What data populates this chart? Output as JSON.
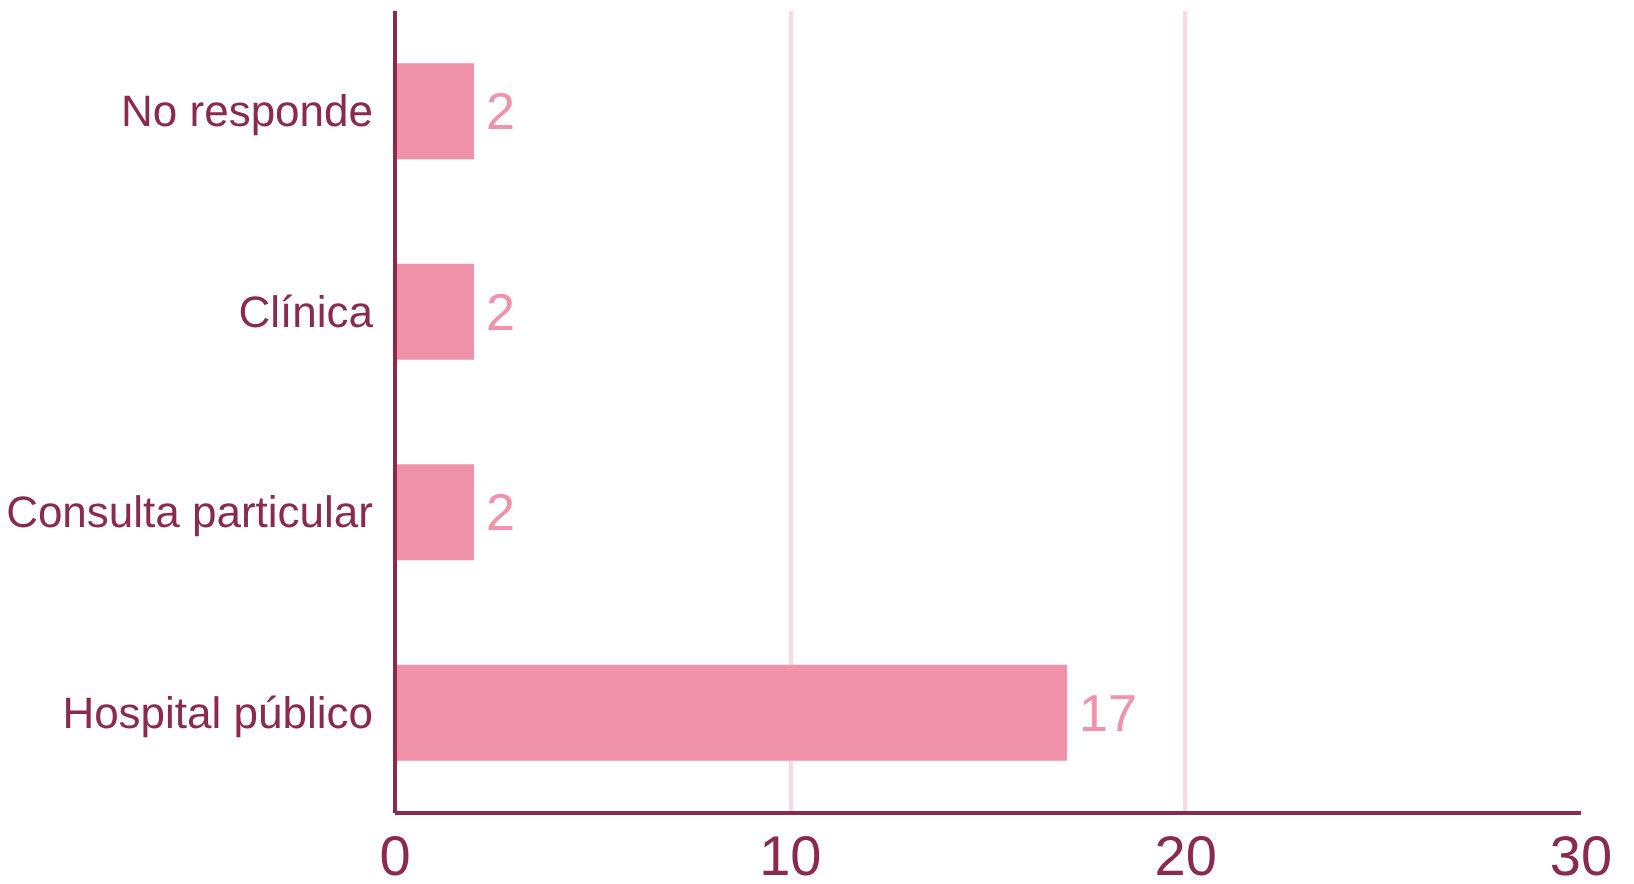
{
  "chart_data": {
    "type": "bar",
    "orientation": "horizontal",
    "categories": [
      "No responde",
      "Clínica",
      "Consulta particular",
      "Hospital público"
    ],
    "values": [
      2,
      2,
      2,
      17
    ],
    "color": "#f093aa",
    "xlim": [
      0,
      30
    ],
    "xticks": [
      0,
      10,
      20,
      30
    ],
    "grid": "x",
    "data_labels": true
  }
}
